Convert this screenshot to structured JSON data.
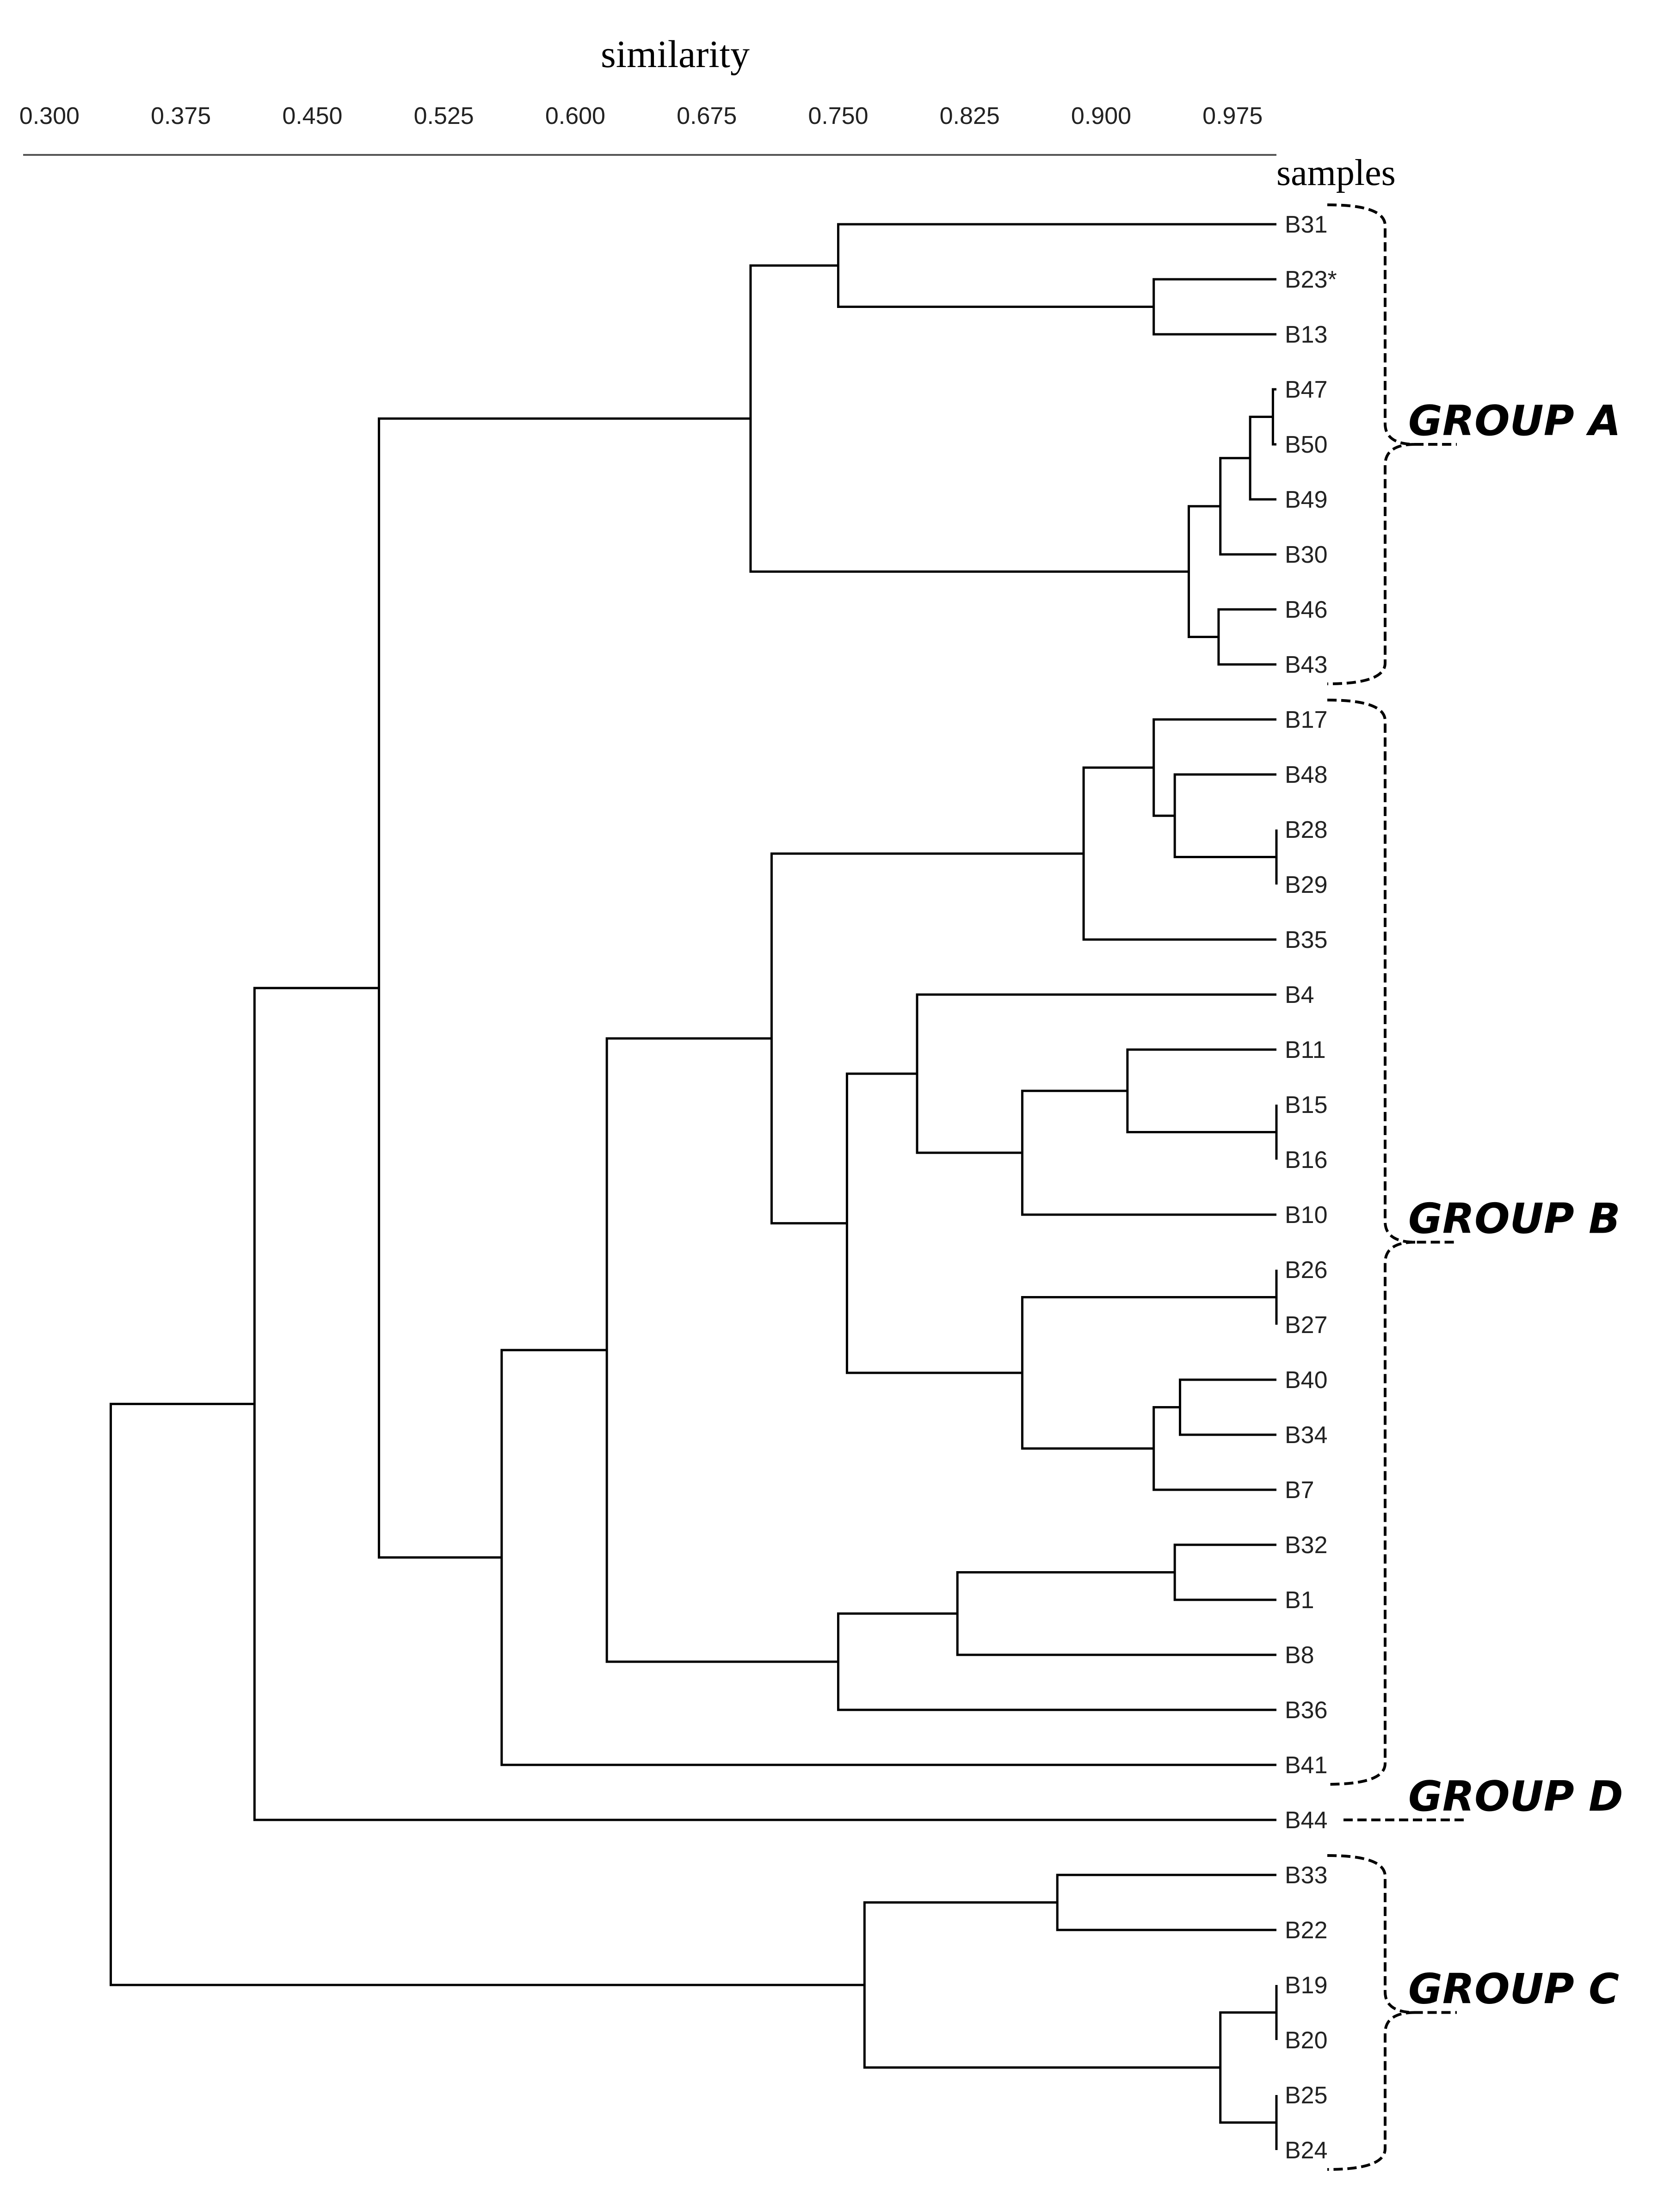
{
  "axis": {
    "title": "similarity",
    "ticks": [
      "0.300",
      "0.375",
      "0.450",
      "0.525",
      "0.600",
      "0.675",
      "0.750",
      "0.825",
      "0.900",
      "0.975"
    ],
    "range": [
      0.285,
      1.0
    ]
  },
  "samples_title": "samples",
  "leaves": [
    "B31",
    "B23*",
    "B13",
    "B47",
    "B50",
    "B49",
    "B30",
    "B46",
    "B43",
    "B17",
    "B48",
    "B28",
    "B29",
    "B35",
    "B4",
    "B11",
    "B15",
    "B16",
    "B10",
    "B26",
    "B27",
    "B40",
    "B34",
    "B7",
    "B32",
    "B1",
    "B8",
    "B36",
    "B41",
    "B44",
    "B33",
    "B22",
    "B19",
    "B20",
    "B25",
    "B24"
  ],
  "merges": [
    {
      "a": 1,
      "b": 2,
      "h": 0.93
    },
    {
      "a": 0,
      "b": -1,
      "h": 0.75
    },
    {
      "a": 3,
      "b": 4,
      "h": 0.998
    },
    {
      "a": -3,
      "b": 5,
      "h": 0.985
    },
    {
      "a": -4,
      "b": 6,
      "h": 0.968
    },
    {
      "a": 7,
      "b": 8,
      "h": 0.967
    },
    {
      "a": -5,
      "b": -6,
      "h": 0.95
    },
    {
      "a": -2,
      "b": -7,
      "h": 0.7
    },
    {
      "a": 11,
      "b": 12,
      "h": 1.0
    },
    {
      "a": 10,
      "b": -9,
      "h": 0.942
    },
    {
      "a": 9,
      "b": -10,
      "h": 0.93
    },
    {
      "a": -11,
      "b": 13,
      "h": 0.89
    },
    {
      "a": 16,
      "b": 17,
      "h": 1.0
    },
    {
      "a": 15,
      "b": -13,
      "h": 0.915
    },
    {
      "a": -14,
      "b": 18,
      "h": 0.855
    },
    {
      "a": 14,
      "b": -15,
      "h": 0.795
    },
    {
      "a": 19,
      "b": 20,
      "h": 1.0
    },
    {
      "a": 21,
      "b": 22,
      "h": 0.945
    },
    {
      "a": -18,
      "b": 23,
      "h": 0.93
    },
    {
      "a": -17,
      "b": -19,
      "h": 0.855
    },
    {
      "a": -16,
      "b": -20,
      "h": 0.755
    },
    {
      "a": -12,
      "b": -21,
      "h": 0.712
    },
    {
      "a": 24,
      "b": 25,
      "h": 0.942
    },
    {
      "a": -23,
      "b": 26,
      "h": 0.818
    },
    {
      "a": -24,
      "b": 27,
      "h": 0.75
    },
    {
      "a": -22,
      "b": -25,
      "h": 0.618
    },
    {
      "a": -26,
      "b": 28,
      "h": 0.558
    },
    {
      "a": -8,
      "b": -27,
      "h": 0.488
    },
    {
      "a": -28,
      "b": 29,
      "h": 0.417
    },
    {
      "a": 30,
      "b": 31,
      "h": 0.875
    },
    {
      "a": 32,
      "b": 33,
      "h": 1.0
    },
    {
      "a": 34,
      "b": 35,
      "h": 1.0
    },
    {
      "a": -31,
      "b": -32,
      "h": 0.968
    },
    {
      "a": -30,
      "b": -33,
      "h": 0.765
    },
    {
      "a": -29,
      "b": -34,
      "h": 0.335
    }
  ],
  "groups": [
    {
      "label": "GROUP A",
      "start": 0,
      "end": 8
    },
    {
      "label": "GROUP B",
      "start": 9,
      "end": 28
    },
    {
      "label": "GROUP D",
      "start": 29,
      "end": 29
    },
    {
      "label": "GROUP C",
      "start": 30,
      "end": 35
    }
  ]
}
